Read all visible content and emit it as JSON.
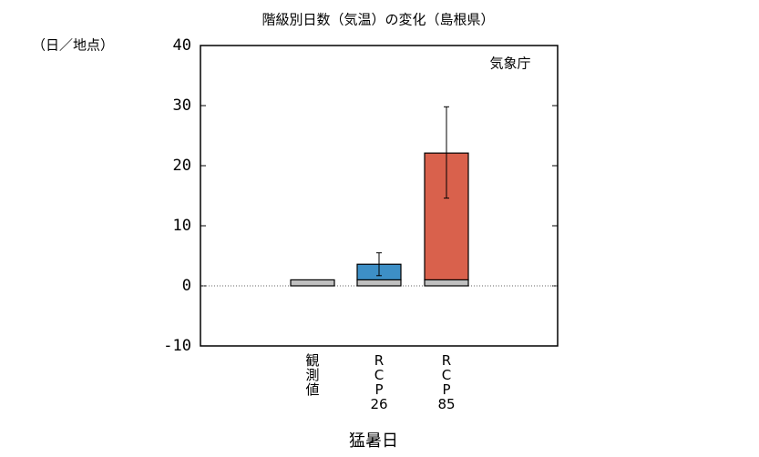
{
  "chart_data": {
    "type": "stacked_bar_error",
    "title": "階級別日数（気温）の変化（島根県）",
    "y_unit_label": "（日／地点）",
    "annotation": "気象庁",
    "x_label": "猛暑日",
    "categories": [
      "観測値",
      "RCP26",
      "RCP85"
    ],
    "series": [
      {
        "colors": [
          "#c0c0c0",
          "#c0c0c0",
          "#c0c0c0"
        ],
        "values": [
          1.0,
          1.0,
          1.0
        ]
      },
      {
        "colors": [
          "#c0c0c0",
          "#3d8fc6",
          "#d9614c"
        ],
        "values": [
          null,
          2.6,
          21.1
        ]
      }
    ],
    "error_low": [
      null,
      1.7,
      14.6
    ],
    "error_high": [
      null,
      5.5,
      29.8
    ],
    "ylim": [
      -10,
      40
    ],
    "yticks": [
      -10,
      0,
      10,
      20,
      30,
      40
    ]
  }
}
